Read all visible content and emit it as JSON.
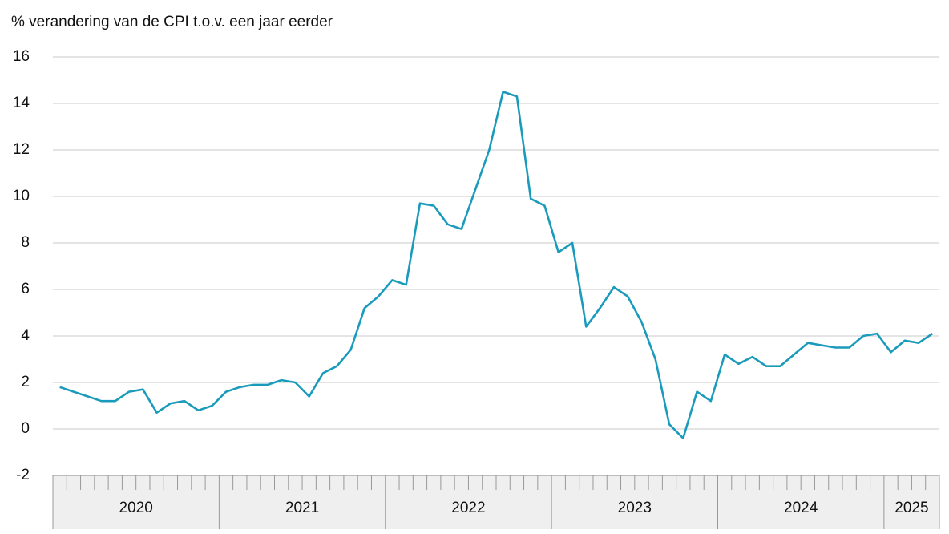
{
  "chart_data": {
    "type": "line",
    "title": "% verandering van de CPI t.o.v. een jaar eerder",
    "year_groups": [
      {
        "label": "2020",
        "months": 12
      },
      {
        "label": "2021",
        "months": 12
      },
      {
        "label": "2022",
        "months": 12
      },
      {
        "label": "2023",
        "months": 12
      },
      {
        "label": "2024",
        "months": 12
      },
      {
        "label": "2025",
        "months": 4
      }
    ],
    "series": [
      {
        "name": "CPI",
        "color": "#1a9bbb",
        "values": [
          1.8,
          1.6,
          1.4,
          1.2,
          1.2,
          1.6,
          1.7,
          0.7,
          1.1,
          1.2,
          0.8,
          1.0,
          1.6,
          1.8,
          1.9,
          1.9,
          2.1,
          2.0,
          1.4,
          2.4,
          2.7,
          3.4,
          5.2,
          5.7,
          6.4,
          6.2,
          9.7,
          9.6,
          8.8,
          8.6,
          10.3,
          12.0,
          14.5,
          14.3,
          9.9,
          9.6,
          7.6,
          8.0,
          4.4,
          5.2,
          6.1,
          5.7,
          4.6,
          3.0,
          0.2,
          -0.4,
          1.6,
          1.2,
          3.2,
          2.8,
          3.1,
          2.7,
          2.7,
          3.2,
          3.7,
          3.6,
          3.5,
          3.5,
          4.0,
          4.1,
          3.3,
          3.8,
          3.7,
          4.1
        ]
      }
    ],
    "ylim": [
      -2,
      16
    ],
    "yticks": [
      -2,
      0,
      2,
      4,
      6,
      8,
      10,
      12,
      14,
      16
    ],
    "grid": true
  }
}
